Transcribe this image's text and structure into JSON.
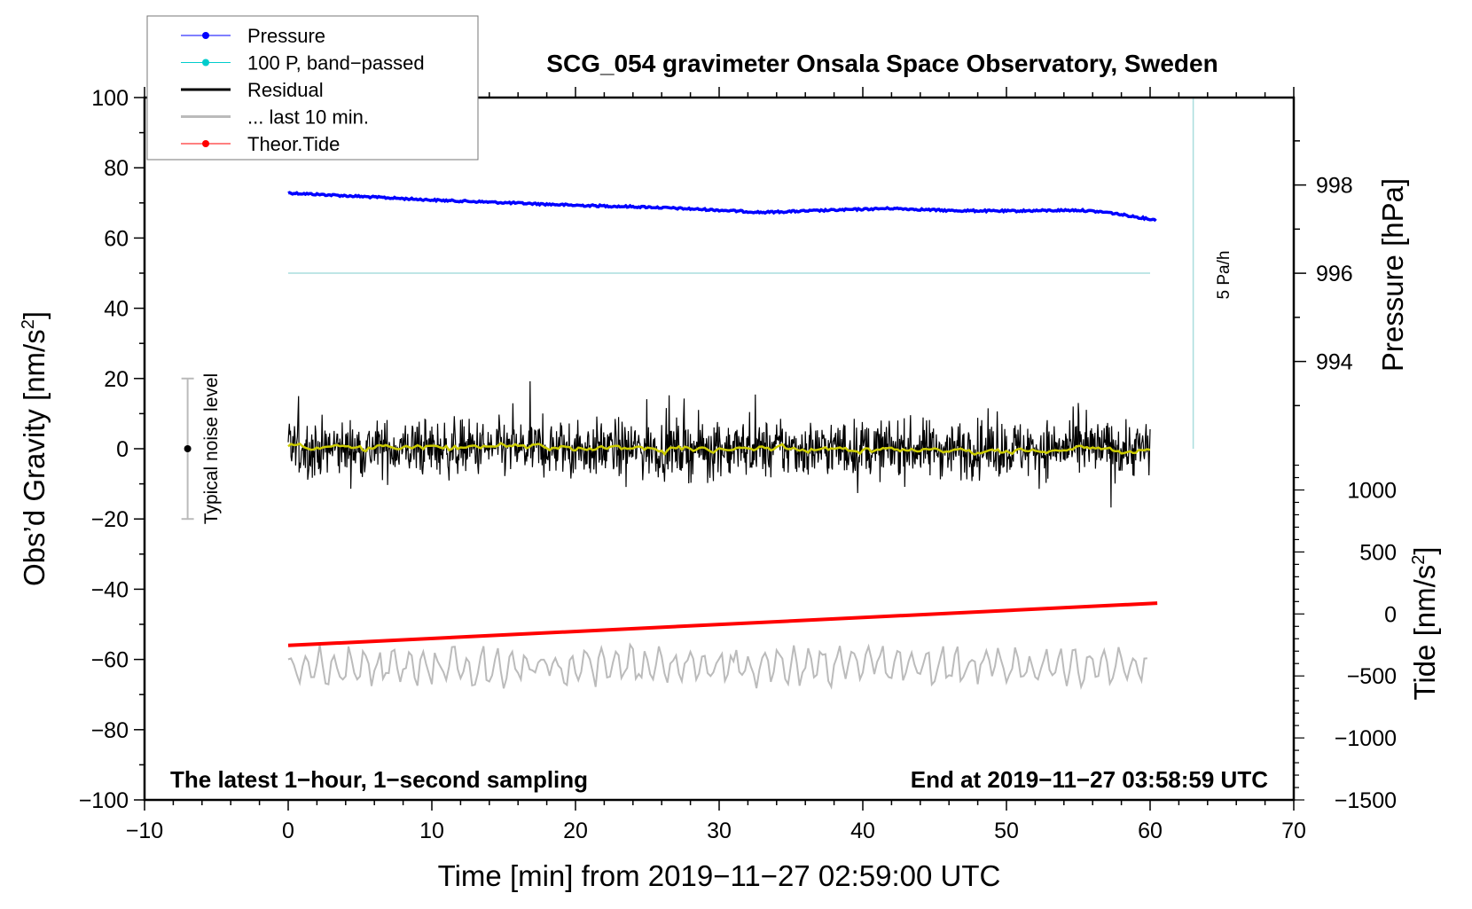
{
  "chart_data": {
    "type": "line",
    "title": "SCG_054 gravimeter Onsala Space Observatory, Sweden",
    "xlabel": "Time [min] from 2019−11−27 02:59:00 UTC",
    "ylabel": "Obs’d Gravity [nm/s",
    "ylabel_sup": "2",
    "ylabel_end": "]",
    "y2label": "Pressure [hPa]",
    "y3label": "Tide [nm/s",
    "y3label_sup": "2",
    "y3label_end": "]",
    "xlim": [
      -10,
      70
    ],
    "ylim": [
      -100,
      100
    ],
    "pressure_ticks_range": [
      993,
      999.8
    ],
    "tide_range": [
      -1500,
      1250
    ],
    "xticks": [
      "−10",
      "0",
      "10",
      "20",
      "30",
      "40",
      "50",
      "60",
      "70"
    ],
    "xtick_values": [
      -10,
      0,
      10,
      20,
      30,
      40,
      50,
      60,
      70
    ],
    "yticks": [
      "100",
      "80",
      "60",
      "40",
      "20",
      "0",
      "−20",
      "−40",
      "−60",
      "−80",
      "−100"
    ],
    "ytick_values": [
      100,
      80,
      60,
      40,
      20,
      0,
      -20,
      -40,
      -60,
      -80,
      -100
    ],
    "pressure_ticks": [
      "998",
      "996",
      "994"
    ],
    "pressure_tick_values": [
      998,
      996,
      994
    ],
    "tide_ticks": [
      "1000",
      "500",
      "0",
      "−500",
      "−1000",
      "−1500"
    ],
    "tide_tick_values": [
      1000,
      500,
      0,
      -500,
      -1000,
      -1500
    ],
    "legend": {
      "placement": "top-left",
      "entries": [
        {
          "label": "Pressure",
          "color": "#0000ff"
        },
        {
          "label": "100 P, band−passed",
          "color": "#00cccc"
        },
        {
          "label": "Residual",
          "color": "#000000"
        },
        {
          "label": "... last 10 min.",
          "color": "#bbbbbb"
        },
        {
          "label": "Theor.Tide",
          "color": "#ff0000"
        }
      ]
    },
    "series": [
      {
        "name": "Pressure",
        "unit": "hPa",
        "color": "#0000ff",
        "x": [
          0,
          5,
          10,
          15,
          20,
          25,
          30,
          33,
          37,
          42,
          46,
          50,
          55,
          57,
          60.5
        ],
        "values": [
          997.82,
          997.74,
          997.66,
          997.6,
          997.54,
          997.5,
          997.43,
          997.38,
          997.42,
          997.47,
          997.42,
          997.41,
          997.43,
          997.38,
          997.2
        ]
      },
      {
        "name": "100 P, band-passed",
        "unit": "nm/s2",
        "color": "#aadddd",
        "x": [
          0,
          60
        ],
        "values": [
          50,
          50
        ]
      },
      {
        "name": "Residual",
        "unit": "nm/s2",
        "color": "#000000",
        "x_range": [
          0,
          60
        ],
        "mean": 0,
        "spread": 4,
        "smoothed_color": "#cccc00"
      },
      {
        "name": "... last 10 min.",
        "unit": "nm/s2",
        "color": "#bbbbbb",
        "x_range": [
          0,
          60
        ],
        "offset": -62,
        "spread": 5
      },
      {
        "name": "Theor.Tide",
        "unit": "nm/s2",
        "color": "#ff0000",
        "x": [
          0,
          60.5
        ],
        "values": [
          -254,
          87
        ]
      }
    ],
    "noise_bar": {
      "label": "Typical noise level",
      "x": -7,
      "low": -20,
      "high": 20,
      "center": 0
    },
    "scale_bar": {
      "label": "5 Pa/h",
      "x": 63,
      "low": 0,
      "high": 100,
      "color": "#aadddd"
    },
    "annotations": {
      "bottom_left": "The latest 1−hour, 1−second sampling",
      "bottom_right": "End at 2019−11−27 03:58:59 UTC"
    }
  }
}
